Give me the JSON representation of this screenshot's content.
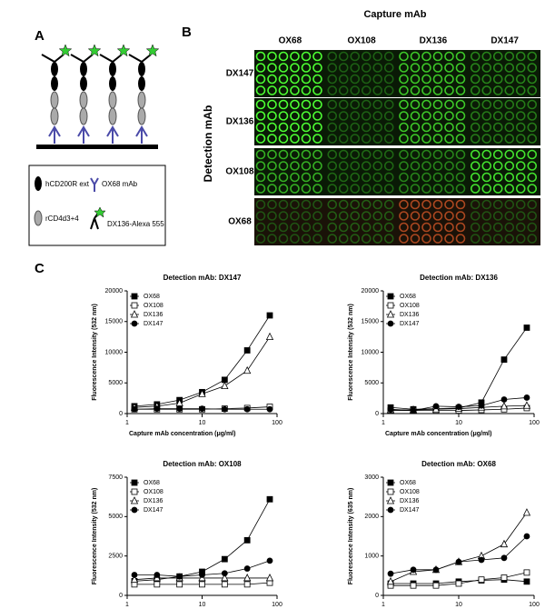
{
  "panels": {
    "a": "A",
    "b": "B",
    "c": "C"
  },
  "panel_a": {
    "legend": [
      "hCD200R ext",
      "OX68 mAb",
      "rCD4d3+4",
      "DX136-Alexa 555"
    ]
  },
  "panel_b": {
    "title": "Capture mAb",
    "ylabel": "Detection mAb",
    "columns": [
      "OX68",
      "OX108",
      "DX136",
      "DX147"
    ],
    "rows": [
      "DX147",
      "DX136",
      "OX108",
      "OX68"
    ]
  },
  "chart_data": [
    {
      "type": "line",
      "title": "Detection mAb: DX147",
      "xlabel": "Capture mAb concentration (μg/ml)",
      "ylabel": "Fluorescence Intensity (532 nm)",
      "xscale": "log",
      "x": [
        1.25,
        2.5,
        5,
        10,
        20,
        40,
        80
      ],
      "xlim": [
        1,
        100
      ],
      "xticks": [
        1,
        10,
        100
      ],
      "ylim": [
        0,
        20000
      ],
      "yticks": [
        0,
        5000,
        10000,
        15000,
        20000
      ],
      "legend": "top-left",
      "series": [
        {
          "name": "OX68",
          "color": "#000",
          "marker": "square-filled",
          "values": [
            1200,
            1500,
            2200,
            3500,
            5500,
            10300,
            16000
          ]
        },
        {
          "name": "OX108",
          "color": "#000",
          "marker": "square-open",
          "values": [
            700,
            700,
            700,
            700,
            800,
            900,
            1100
          ]
        },
        {
          "name": "DX136",
          "color": "#000",
          "marker": "triangle-open",
          "values": [
            1000,
            1200,
            1700,
            3200,
            4500,
            7000,
            12500
          ]
        },
        {
          "name": "DX147",
          "color": "#000",
          "marker": "circle-filled",
          "values": [
            700,
            800,
            800,
            800,
            700,
            700,
            700
          ]
        }
      ]
    },
    {
      "type": "line",
      "title": "Detection mAb: DX136",
      "xlabel": "Capture mAb concentration (μg/ml)",
      "ylabel": "Fluorescence Intensity (532 nm)",
      "xscale": "log",
      "x": [
        1.25,
        2.5,
        5,
        10,
        20,
        40,
        80
      ],
      "xlim": [
        1,
        100
      ],
      "xticks": [
        1,
        10,
        100
      ],
      "ylim": [
        0,
        20000
      ],
      "yticks": [
        0,
        5000,
        10000,
        15000,
        20000
      ],
      "legend": "top-left",
      "series": [
        {
          "name": "OX68",
          "color": "#000",
          "marker": "square-filled",
          "values": [
            1000,
            700,
            800,
            900,
            1800,
            8800,
            14000
          ]
        },
        {
          "name": "OX108",
          "color": "#000",
          "marker": "square-open",
          "values": [
            500,
            500,
            500,
            500,
            600,
            700,
            900
          ]
        },
        {
          "name": "DX136",
          "color": "#000",
          "marker": "triangle-open",
          "values": [
            600,
            600,
            700,
            800,
            1000,
            1200,
            1300
          ]
        },
        {
          "name": "DX147",
          "color": "#000",
          "marker": "circle-filled",
          "values": [
            700,
            500,
            1200,
            1100,
            1300,
            2300,
            2600
          ]
        }
      ]
    },
    {
      "type": "line",
      "title": "Detection mAb: OX108",
      "xlabel": "Capture mAb concentration (μg/ml)",
      "ylabel": "Fluorescence Intensity (532 nm)",
      "xscale": "log",
      "x": [
        1.25,
        2.5,
        5,
        10,
        20,
        40,
        80
      ],
      "xlim": [
        1,
        100
      ],
      "xticks": [
        1,
        10,
        100
      ],
      "ylim": [
        0,
        7500
      ],
      "yticks": [
        0,
        2500,
        5000,
        7500
      ],
      "legend": "top-left",
      "series": [
        {
          "name": "OX68",
          "color": "#000",
          "marker": "square-filled",
          "values": [
            900,
            1000,
            1200,
            1500,
            2300,
            3500,
            6100
          ]
        },
        {
          "name": "OX108",
          "color": "#000",
          "marker": "square-open",
          "values": [
            700,
            700,
            700,
            700,
            700,
            700,
            800
          ]
        },
        {
          "name": "DX136",
          "color": "#000",
          "marker": "triangle-open",
          "values": [
            1000,
            1100,
            1100,
            1100,
            1100,
            1100,
            1100
          ]
        },
        {
          "name": "DX147",
          "color": "#000",
          "marker": "circle-filled",
          "values": [
            1300,
            1300,
            1200,
            1300,
            1400,
            1700,
            2200
          ]
        }
      ]
    },
    {
      "type": "line",
      "title": "Detection mAb: OX68",
      "xlabel": "Capture mAb concentration (μg/ml)",
      "ylabel": "Fluorescence Intensity (635 nm)",
      "xscale": "log",
      "x": [
        1.25,
        2.5,
        5,
        10,
        20,
        40,
        80
      ],
      "xlim": [
        1,
        100
      ],
      "xticks": [
        1,
        10,
        100
      ],
      "ylim": [
        0,
        3000
      ],
      "yticks": [
        0,
        1000,
        2000,
        3000
      ],
      "legend": "top-left",
      "series": [
        {
          "name": "OX68",
          "color": "#000",
          "marker": "square-filled",
          "values": [
            300,
            300,
            300,
            350,
            380,
            400,
            350
          ]
        },
        {
          "name": "OX108",
          "color": "#000",
          "marker": "square-open",
          "values": [
            250,
            250,
            250,
            300,
            400,
            450,
            580
          ]
        },
        {
          "name": "DX136",
          "color": "#000",
          "marker": "triangle-open",
          "values": [
            350,
            600,
            650,
            850,
            1000,
            1300,
            2100
          ]
        },
        {
          "name": "DX147",
          "color": "#000",
          "marker": "circle-filled",
          "values": [
            550,
            650,
            650,
            850,
            900,
            950,
            1500
          ]
        }
      ]
    }
  ]
}
